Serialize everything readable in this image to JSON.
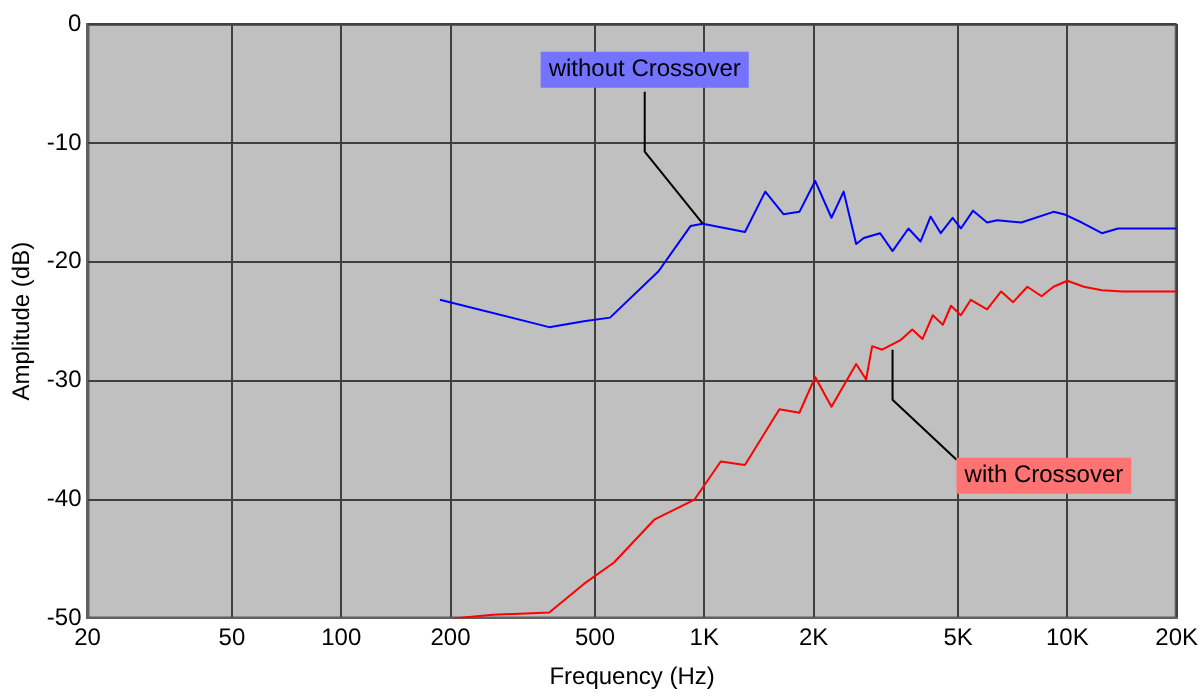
{
  "chart_data": {
    "type": "line",
    "xlabel": "Frequency (Hz)",
    "ylabel": "Amplitude (dB)",
    "log": "x",
    "grid": true,
    "legend": false,
    "marker": "none",
    "line_style": "solid",
    "xlim": [
      20,
      20000
    ],
    "ylim": [
      -50,
      0
    ],
    "xticks": [
      20,
      50,
      100,
      200,
      500,
      {
        "value": 1000,
        "label": "1K"
      },
      {
        "value": 2000,
        "label": "2K"
      },
      {
        "value": 5000,
        "label": "5K"
      },
      {
        "value": 10000,
        "label": "10K"
      },
      {
        "value": 20000,
        "label": "20K"
      }
    ],
    "yticks": [
      -50,
      -40,
      -30,
      -20,
      -10,
      0
    ],
    "series": [
      {
        "color": "#0000ff",
        "x": [
          187,
          374,
          466,
          550,
          748,
          916,
          990,
          1294,
          1472,
          1652,
          1828,
          2020,
          2240,
          2420,
          2620,
          2750,
          3050,
          3300,
          3650,
          3940,
          4200,
          4480,
          4830,
          5090,
          5500,
          6010,
          6410,
          7470,
          9160,
          9780,
          10960,
          12450,
          13800,
          16100,
          20000
        ],
        "values": [
          -23.2,
          -25.5,
          -25.0,
          -24.7,
          -20.8,
          -17.0,
          -16.8,
          -17.5,
          -14.1,
          -16.0,
          -15.8,
          -13.2,
          -16.3,
          -14.1,
          -18.5,
          -18.0,
          -17.6,
          -19.1,
          -17.2,
          -18.3,
          -16.2,
          -17.6,
          -16.3,
          -17.2,
          -15.7,
          -16.7,
          -16.5,
          -16.7,
          -15.8,
          -16.0,
          -16.7,
          -17.6,
          -17.2,
          -17.2,
          -17.2
        ]
      },
      {
        "color": "#ff0000",
        "x": [
          203,
          262,
          374,
          466,
          564,
          728,
          940,
          1110,
          1294,
          1610,
          1828,
          2020,
          2240,
          2620,
          2790,
          2900,
          3090,
          3470,
          3740,
          3990,
          4260,
          4540,
          4780,
          5090,
          5420,
          6010,
          6570,
          7090,
          7760,
          8490,
          9160,
          10000,
          11100,
          12450,
          14200,
          16700,
          20000
        ],
        "values": [
          -50.0,
          -49.7,
          -49.5,
          -47.1,
          -45.3,
          -41.7,
          -40.0,
          -36.8,
          -37.1,
          -32.4,
          -32.7,
          -29.7,
          -32.2,
          -28.6,
          -29.9,
          -27.1,
          -27.4,
          -26.6,
          -25.7,
          -26.5,
          -24.5,
          -25.3,
          -23.7,
          -24.5,
          -23.2,
          -24.0,
          -22.5,
          -23.4,
          -22.1,
          -22.9,
          -22.1,
          -21.6,
          -22.1,
          -22.4,
          -22.5,
          -22.5,
          -22.5
        ]
      }
    ],
    "annotations": [
      {
        "text": "without Crossover",
        "x": 990,
        "y": -16.8
      },
      {
        "text": "with Crossover",
        "x": 3300,
        "y": -27.4
      }
    ]
  }
}
